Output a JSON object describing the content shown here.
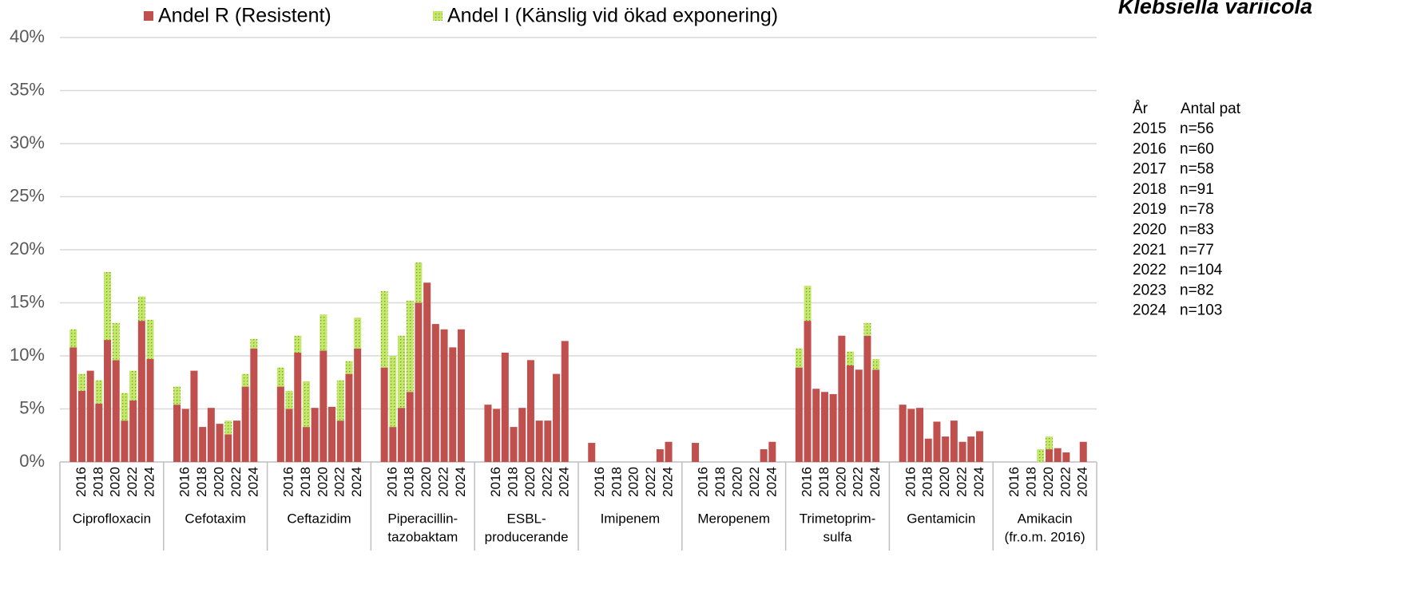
{
  "chart_data": {
    "type": "stacked_bar",
    "title": "Klebsiella variicola",
    "categories": [
      null,
      "2016",
      null,
      "2018",
      null,
      "2020",
      null,
      "2022",
      null,
      "2024"
    ],
    "groups": [
      [
        "Ciprofloxacin"
      ],
      [
        "Cefotaxim"
      ],
      [
        "Ceftazidim"
      ],
      [
        "Piperacillin-",
        "tazobaktam"
      ],
      [
        "ESBL-",
        "producerande"
      ],
      [
        "Imipenem"
      ],
      [
        "Meropenem"
      ],
      [
        "Trimetoprim-",
        "sulfa"
      ],
      [
        "Gentamicin"
      ],
      [
        "Amikacin",
        "(fr.o.m. 2016)"
      ]
    ],
    "series": [
      {
        "name": "Andel R (Resistent)",
        "color": "#c0504d",
        "values": [
          [
            10.8,
            6.7,
            8.6,
            5.5,
            11.5,
            9.6,
            3.9,
            5.8,
            13.3,
            9.7
          ],
          [
            5.4,
            5.0,
            8.6,
            3.3,
            5.1,
            3.6,
            2.6,
            3.9,
            7.1,
            10.7
          ],
          [
            7.1,
            5.0,
            10.3,
            3.3,
            5.1,
            10.5,
            5.2,
            3.9,
            8.3,
            10.7
          ],
          [
            8.9,
            3.3,
            5.1,
            6.6,
            15.0,
            16.9,
            13.0,
            12.5,
            10.8,
            12.5
          ],
          [
            5.4,
            5.0,
            10.3,
            3.3,
            5.1,
            9.6,
            3.9,
            3.9,
            8.3,
            11.4
          ],
          [
            1.8,
            0,
            0,
            0,
            0,
            0,
            0,
            0,
            1.2,
            1.9
          ],
          [
            1.8,
            0,
            0,
            0,
            0,
            0,
            0,
            0,
            1.2,
            1.9
          ],
          [
            8.9,
            13.3,
            6.9,
            6.6,
            6.4,
            11.9,
            9.1,
            8.7,
            11.9,
            8.7
          ],
          [
            5.4,
            5.0,
            5.1,
            2.2,
            3.8,
            2.4,
            3.9,
            1.9,
            2.4,
            2.9
          ],
          [
            null,
            0,
            0,
            0,
            0,
            1.2,
            1.3,
            0.9,
            0,
            1.9
          ]
        ]
      },
      {
        "name": "Andel I (Känslig vid ökad exponering)",
        "color": "#c4e86a",
        "values": [
          [
            1.7,
            1.6,
            0,
            2.2,
            6.4,
            3.5,
            2.6,
            2.8,
            2.3,
            3.7
          ],
          [
            1.7,
            0,
            0,
            0,
            0,
            0,
            1.3,
            0,
            1.2,
            0.9
          ],
          [
            1.8,
            1.7,
            1.6,
            4.3,
            0,
            3.4,
            0,
            3.8,
            1.2,
            2.9
          ],
          [
            7.2,
            6.7,
            6.8,
            8.6,
            3.8,
            0,
            0,
            0,
            0,
            0
          ],
          [
            0,
            0,
            0,
            0,
            0,
            0,
            0,
            0,
            0,
            0
          ],
          [
            0,
            0,
            0,
            0,
            0,
            0,
            0,
            0,
            0,
            0
          ],
          [
            0,
            0,
            0,
            0,
            0,
            0,
            0,
            0,
            0,
            0
          ],
          [
            1.8,
            3.3,
            0,
            0,
            0,
            0,
            1.3,
            0,
            1.2,
            1.0
          ],
          [
            0,
            0,
            0,
            0,
            0,
            0,
            0,
            0,
            0,
            0
          ],
          [
            null,
            0,
            0,
            0,
            1.2,
            1.2,
            0,
            0,
            0,
            0
          ]
        ]
      }
    ],
    "ylim": [
      0,
      40
    ],
    "yticks": [
      {
        "value": 0,
        "label": "0%"
      },
      {
        "value": 5,
        "label": "5%"
      },
      {
        "value": 10,
        "label": "10%"
      },
      {
        "value": 15,
        "label": "15%"
      },
      {
        "value": 20,
        "label": "20%"
      },
      {
        "value": 25,
        "label": "25%"
      },
      {
        "value": 30,
        "label": "30%"
      },
      {
        "value": 35,
        "label": "35%"
      },
      {
        "value": 40,
        "label": "40%"
      }
    ],
    "grid": true,
    "legend": "top",
    "sample_sizes": {
      "headers": [
        "År",
        "Antal pat"
      ],
      "rows": [
        [
          "2015",
          "n=56"
        ],
        [
          "2016",
          "n=60"
        ],
        [
          "2017",
          "n=58"
        ],
        [
          "2018",
          "n=91"
        ],
        [
          "2019",
          "n=78"
        ],
        [
          "2020",
          "n=83"
        ],
        [
          "2021",
          "n=77"
        ],
        [
          "2022",
          "n=104"
        ],
        [
          "2023",
          "n=82"
        ],
        [
          "2024",
          "n=103"
        ]
      ]
    }
  }
}
